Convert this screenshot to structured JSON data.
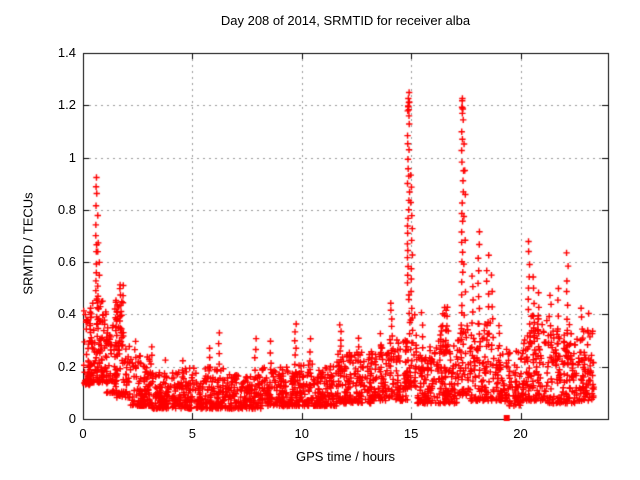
{
  "chart_data": {
    "type": "scatter",
    "title": "Day 208 of 2014, SRMTID for receiver alba",
    "xlabel": "GPS time / hours",
    "ylabel": "SRMTID / TECUs",
    "xlim": [
      0,
      24
    ],
    "ylim": [
      0,
      1.4
    ],
    "xticks": [
      0,
      5,
      10,
      15,
      20
    ],
    "xtick_labels": [
      "0",
      "5",
      "10",
      "15",
      "20"
    ],
    "yticks": [
      0,
      0.2,
      0.4,
      0.6,
      0.8,
      1.0,
      1.2,
      1.4
    ],
    "ytick_labels": [
      "0",
      "0.2",
      "0.4",
      "0.6",
      "0.8",
      "1",
      "1.2",
      "1.4"
    ],
    "grid": true,
    "legend": "none",
    "marker": "plus",
    "marker_color": "#ff0000",
    "grid_color": "#9a9a9a",
    "axis_color": "#000000",
    "background_color": "#ffffff",
    "description": "Dense scatter of SRMTID values every ~30s over 24h. Quiet band ~0.05-0.25 TECUs most of the day, elevated activity 0-2h (up to 0.93 at ~0.6h), large spikes near 14.9h (max 1.25) and 17.35h (max 1.22), moderate spikes 18-23h (0.4-0.72), data ends ~23.35h.",
    "band_segments": [
      {
        "x0": 0.0,
        "x1": 0.35,
        "y_min": 0.13,
        "y_max": 0.42,
        "n": 45
      },
      {
        "x0": 0.3,
        "x1": 1.1,
        "y_min": 0.14,
        "y_max": 0.46,
        "n": 120
      },
      {
        "x0": 1.05,
        "x1": 1.55,
        "y_min": 0.1,
        "y_max": 0.36,
        "n": 55
      },
      {
        "x0": 1.45,
        "x1": 1.85,
        "y_min": 0.28,
        "y_max": 0.53,
        "n": 35
      },
      {
        "x0": 1.5,
        "x1": 2.15,
        "y_min": 0.08,
        "y_max": 0.3,
        "n": 55
      },
      {
        "x0": 2.15,
        "x1": 3.1,
        "y_min": 0.05,
        "y_max": 0.25,
        "n": 95
      },
      {
        "x0": 3.1,
        "x1": 4.6,
        "y_min": 0.04,
        "y_max": 0.18,
        "n": 140
      },
      {
        "x0": 4.6,
        "x1": 6.6,
        "y_min": 0.04,
        "y_max": 0.2,
        "n": 190
      },
      {
        "x0": 6.6,
        "x1": 8.15,
        "y_min": 0.04,
        "y_max": 0.17,
        "n": 145
      },
      {
        "x0": 8.15,
        "x1": 9.6,
        "y_min": 0.05,
        "y_max": 0.2,
        "n": 140
      },
      {
        "x0": 9.6,
        "x1": 11.6,
        "y_min": 0.05,
        "y_max": 0.21,
        "n": 190
      },
      {
        "x0": 11.6,
        "x1": 13.3,
        "y_min": 0.06,
        "y_max": 0.26,
        "n": 170
      },
      {
        "x0": 13.3,
        "x1": 14.85,
        "y_min": 0.07,
        "y_max": 0.31,
        "n": 150
      },
      {
        "x0": 14.85,
        "x1": 15.25,
        "y_min": 0.12,
        "y_max": 0.42,
        "n": 40
      },
      {
        "x0": 15.25,
        "x1": 17.1,
        "y_min": 0.06,
        "y_max": 0.28,
        "n": 180
      },
      {
        "x0": 16.25,
        "x1": 16.7,
        "y_min": 0.25,
        "y_max": 0.43,
        "n": 30
      },
      {
        "x0": 17.1,
        "x1": 17.65,
        "y_min": 0.09,
        "y_max": 0.36,
        "n": 50
      },
      {
        "x0": 17.65,
        "x1": 19.1,
        "y_min": 0.07,
        "y_max": 0.4,
        "n": 135
      },
      {
        "x0": 19.1,
        "x1": 20.1,
        "y_min": 0.05,
        "y_max": 0.27,
        "n": 85
      },
      {
        "x0": 20.1,
        "x1": 21.1,
        "y_min": 0.07,
        "y_max": 0.4,
        "n": 105
      },
      {
        "x0": 21.1,
        "x1": 22.6,
        "y_min": 0.06,
        "y_max": 0.38,
        "n": 140
      },
      {
        "x0": 22.6,
        "x1": 23.35,
        "y_min": 0.07,
        "y_max": 0.34,
        "n": 75
      }
    ],
    "spike_columns": [
      {
        "x": 0.63,
        "y_base": 0.45,
        "y_top": 0.93,
        "n": 14
      },
      {
        "x": 0.72,
        "y_base": 0.38,
        "y_top": 0.68,
        "n": 8
      },
      {
        "x": 1.7,
        "y_base": 0.3,
        "y_top": 0.52,
        "n": 6
      },
      {
        "x": 2.4,
        "y_base": 0.16,
        "y_top": 0.3,
        "n": 5
      },
      {
        "x": 3.1,
        "y_base": 0.14,
        "y_top": 0.28,
        "n": 5
      },
      {
        "x": 3.75,
        "y_base": 0.1,
        "y_top": 0.22,
        "n": 4
      },
      {
        "x": 4.55,
        "y_base": 0.12,
        "y_top": 0.22,
        "n": 4
      },
      {
        "x": 5.75,
        "y_base": 0.12,
        "y_top": 0.27,
        "n": 5
      },
      {
        "x": 6.25,
        "y_base": 0.12,
        "y_top": 0.33,
        "n": 6
      },
      {
        "x": 7.9,
        "y_base": 0.12,
        "y_top": 0.3,
        "n": 6
      },
      {
        "x": 8.6,
        "y_base": 0.13,
        "y_top": 0.3,
        "n": 5
      },
      {
        "x": 9.7,
        "y_base": 0.15,
        "y_top": 0.36,
        "n": 8
      },
      {
        "x": 10.4,
        "y_base": 0.13,
        "y_top": 0.3,
        "n": 5
      },
      {
        "x": 11.75,
        "y_base": 0.18,
        "y_top": 0.36,
        "n": 8
      },
      {
        "x": 12.6,
        "y_base": 0.16,
        "y_top": 0.31,
        "n": 6
      },
      {
        "x": 13.6,
        "y_base": 0.16,
        "y_top": 0.33,
        "n": 5
      },
      {
        "x": 14.1,
        "y_base": 0.22,
        "y_top": 0.45,
        "n": 8
      },
      {
        "x": 14.88,
        "y_base": 0.45,
        "y_top": 1.25,
        "n": 26
      },
      {
        "x": 14.88,
        "y_base": 1.18,
        "y_top": 1.22,
        "n": 5
      },
      {
        "x": 15.02,
        "y_base": 0.38,
        "y_top": 0.93,
        "n": 12
      },
      {
        "x": 15.5,
        "y_base": 0.18,
        "y_top": 0.4,
        "n": 6
      },
      {
        "x": 17.35,
        "y_base": 0.4,
        "y_top": 1.22,
        "n": 22
      },
      {
        "x": 17.35,
        "y_base": 1.17,
        "y_top": 1.21,
        "n": 4
      },
      {
        "x": 17.45,
        "y_base": 0.4,
        "y_top": 1.05,
        "n": 8
      },
      {
        "x": 17.8,
        "y_base": 0.28,
        "y_top": 0.55,
        "n": 7
      },
      {
        "x": 18.1,
        "y_base": 0.32,
        "y_top": 0.72,
        "n": 9
      },
      {
        "x": 18.5,
        "y_base": 0.28,
        "y_top": 0.62,
        "n": 8
      },
      {
        "x": 18.7,
        "y_base": 0.26,
        "y_top": 0.55,
        "n": 6
      },
      {
        "x": 20.4,
        "y_base": 0.28,
        "y_top": 0.68,
        "n": 10
      },
      {
        "x": 20.6,
        "y_base": 0.24,
        "y_top": 0.55,
        "n": 7
      },
      {
        "x": 20.85,
        "y_base": 0.22,
        "y_top": 0.48,
        "n": 6
      },
      {
        "x": 21.35,
        "y_base": 0.24,
        "y_top": 0.47,
        "n": 7
      },
      {
        "x": 21.75,
        "y_base": 0.24,
        "y_top": 0.5,
        "n": 6
      },
      {
        "x": 22.15,
        "y_base": 0.28,
        "y_top": 0.63,
        "n": 8
      },
      {
        "x": 22.8,
        "y_base": 0.22,
        "y_top": 0.43,
        "n": 6
      },
      {
        "x": 23.1,
        "y_base": 0.18,
        "y_top": 0.4,
        "n": 5
      }
    ],
    "outlier_point": {
      "x": 19.37,
      "y": 0.0,
      "marker": "filled-square"
    }
  }
}
